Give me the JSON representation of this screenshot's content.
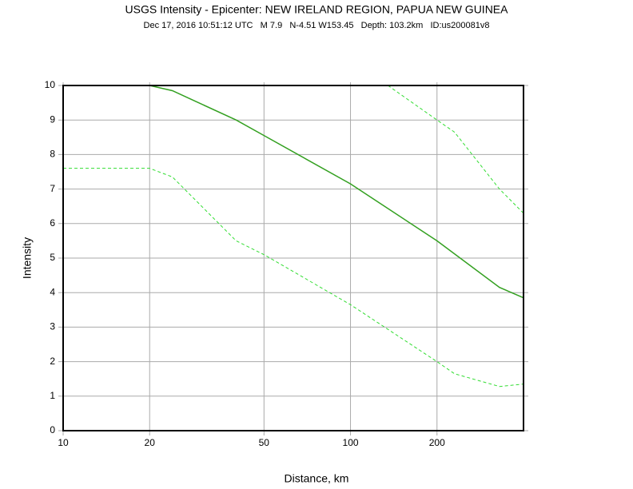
{
  "chart_data": {
    "type": "line",
    "title": "USGS Intensity -  Epicenter: NEW IRELAND REGION, PAPUA NEW GUINEA",
    "subtitle": "Dec 17, 2016 10:51:12 UTC   M 7.9   N-4.51 W153.45   Depth: 103.2km   ID:us200081v8",
    "x_label": "Distance, km",
    "y_label": "Intensity",
    "x_scale": "log",
    "grid": true,
    "xlim": [
      10,
      400
    ],
    "ylim": [
      0,
      10
    ],
    "xticks": [
      10,
      20,
      50,
      100,
      200
    ],
    "yticks": [
      0,
      1,
      2,
      3,
      4,
      5,
      6,
      7,
      8,
      9,
      10
    ],
    "series": [
      {
        "color": "#33a020",
        "dashed": false,
        "x": [
          10,
          20,
          24,
          40,
          50,
          100,
          200,
          330,
          400
        ],
        "values": [
          10,
          10,
          9.85,
          9.0,
          8.55,
          7.15,
          5.5,
          4.15,
          3.85
        ]
      },
      {
        "color": "#33dd33",
        "dashed": true,
        "x": [
          135,
          200,
          230,
          330,
          400
        ],
        "values": [
          10,
          9.0,
          8.65,
          7.0,
          6.3
        ]
      },
      {
        "color": "#33dd33",
        "dashed": true,
        "x": [
          10,
          20,
          24,
          40,
          50,
          100,
          200,
          230,
          330,
          400
        ],
        "values": [
          7.6,
          7.6,
          7.35,
          5.5,
          5.1,
          3.65,
          2.0,
          1.65,
          1.28,
          1.35
        ]
      }
    ]
  }
}
